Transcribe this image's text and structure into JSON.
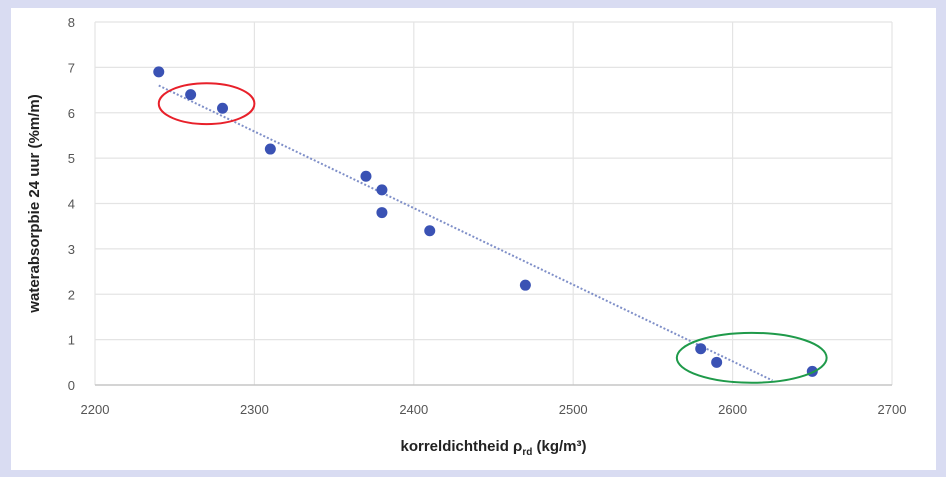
{
  "chart_data": {
    "type": "scatter",
    "title": "",
    "xlabel": "korreldichtheid ρ",
    "xlabel_subscript": "rd",
    "xlabel_unit": " (kg/m³)",
    "ylabel": "waterabsorpbie 24 uur (%m/m)",
    "xlim": [
      2200,
      2700
    ],
    "ylim": [
      0,
      8
    ],
    "xticks": [
      2200,
      2300,
      2400,
      2500,
      2600,
      2700
    ],
    "yticks": [
      0,
      1,
      2,
      3,
      4,
      5,
      6,
      7,
      8
    ],
    "grid": true,
    "series": [
      {
        "points": [
          {
            "x": 2240,
            "y": 6.9
          },
          {
            "x": 2260,
            "y": 6.4
          },
          {
            "x": 2280,
            "y": 6.1
          },
          {
            "x": 2310,
            "y": 5.2
          },
          {
            "x": 2370,
            "y": 4.6
          },
          {
            "x": 2380,
            "y": 4.3
          },
          {
            "x": 2380,
            "y": 3.8
          },
          {
            "x": 2410,
            "y": 3.4
          },
          {
            "x": 2470,
            "y": 2.2
          },
          {
            "x": 2580,
            "y": 0.8
          },
          {
            "x": 2590,
            "y": 0.5
          },
          {
            "x": 2650,
            "y": 0.3
          }
        ],
        "color": "#3a52b4"
      }
    ],
    "trendline": {
      "type": "linear",
      "from": [
        2240,
        6.6
      ],
      "to": [
        2625,
        0.1
      ],
      "color": "#7f8fc8",
      "style": "dotted"
    },
    "highlights": [
      {
        "shape": "ellipse",
        "center": [
          2270,
          6.2
        ],
        "rx_data": 30,
        "ry_data": 0.45,
        "color": "#e8202a"
      },
      {
        "shape": "ellipse",
        "center": [
          2612,
          0.6
        ],
        "rx_data": 47,
        "ry_data": 0.55,
        "color": "#1f9a4a"
      }
    ]
  }
}
